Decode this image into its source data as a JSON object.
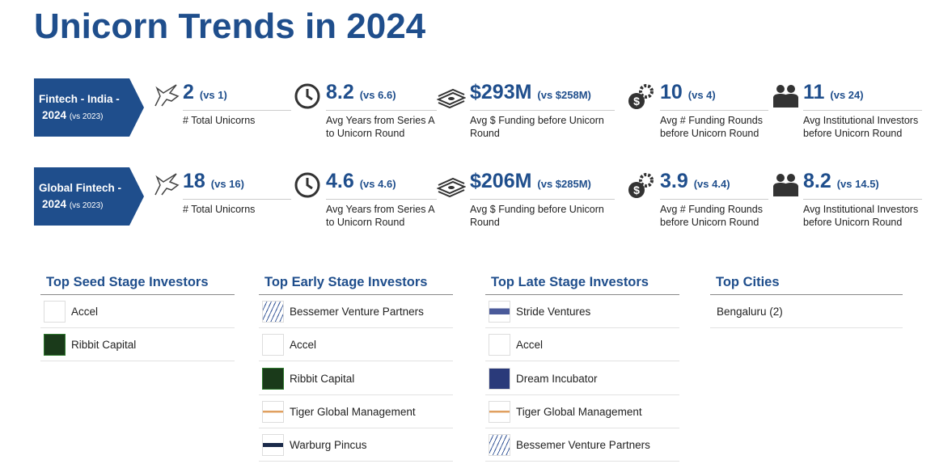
{
  "header": {
    "title": "Unicorn Trends in 2024"
  },
  "rows": [
    {
      "label": {
        "line1": "Fintech - India -",
        "line2": "2024",
        "note": "(vs 2023)"
      },
      "metrics": [
        {
          "value": "2",
          "comparison": "(vs 1)",
          "label": "# Total Unicorns"
        },
        {
          "value": "8.2",
          "comparison": "(vs 6.6)",
          "label": "Avg Years from Series A to Unicorn Round"
        },
        {
          "value": "$293M",
          "comparison": "(vs $258M)",
          "label": "Avg $ Funding before Unicorn Round"
        },
        {
          "value": "10",
          "comparison": "(vs 4)",
          "label": "Avg # Funding Rounds before Unicorn Round"
        },
        {
          "value": "11",
          "comparison": "(vs 24)",
          "label": "Avg Institutional Investors before Unicorn Round"
        }
      ]
    },
    {
      "label": {
        "line1": "Global Fintech -",
        "line2": "2024",
        "note": "(vs 2023)"
      },
      "metrics": [
        {
          "value": "18",
          "comparison": "(vs 16)",
          "label": "# Total Unicorns"
        },
        {
          "value": "4.6",
          "comparison": "(vs 4.6)",
          "label": "Avg Years from Series A to Unicorn Round"
        },
        {
          "value": "$206M",
          "comparison": "(vs $285M)",
          "label": "Avg $ Funding before Unicorn Round"
        },
        {
          "value": "3.9",
          "comparison": "(vs 4.4)",
          "label": "Avg # Funding Rounds before Unicorn Round"
        },
        {
          "value": "8.2",
          "comparison": "(vs 14.5)",
          "label": "Avg Institutional Investors before Unicorn Round"
        }
      ]
    }
  ],
  "lists": [
    {
      "title": "Top Seed Stage Investors",
      "items": [
        "Accel",
        "Ribbit Capital"
      ]
    },
    {
      "title": "Top Early Stage Investors",
      "items": [
        "Bessemer Venture Partners",
        "Accel",
        "Ribbit Capital",
        "Tiger Global Management",
        "Warburg Pincus"
      ]
    },
    {
      "title": "Top Late Stage Investors",
      "items": [
        "Stride Ventures",
        "Accel",
        "Dream Incubator",
        "Tiger Global Management",
        "Bessemer Venture Partners"
      ]
    },
    {
      "title": "Top Cities",
      "items": [
        "Bengaluru (2)"
      ]
    }
  ]
}
